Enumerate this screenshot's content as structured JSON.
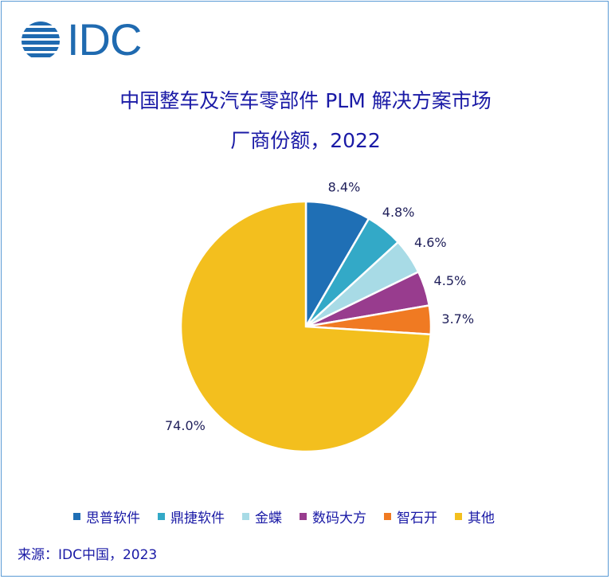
{
  "logo": {
    "text": "IDC"
  },
  "chart_data": {
    "type": "pie",
    "title": "中国整车及汽车零部件 PLM 解决方案市场",
    "subtitle": "厂商份额，2022",
    "categories": [
      "思普软件",
      "鼎捷软件",
      "金蝶",
      "数码大方",
      "智石开",
      "其他"
    ],
    "values": [
      8.4,
      4.8,
      4.6,
      4.5,
      3.7,
      74.0
    ],
    "labels": [
      "8.4%",
      "4.8%",
      "4.6%",
      "4.5%",
      "3.7%",
      "74.0%"
    ],
    "colors": [
      "#1f6fb5",
      "#33a9c7",
      "#a8dbe6",
      "#983c8e",
      "#f07a22",
      "#f3bf1e"
    ],
    "legend_position": "bottom"
  },
  "source": "来源：IDC中国，2023"
}
